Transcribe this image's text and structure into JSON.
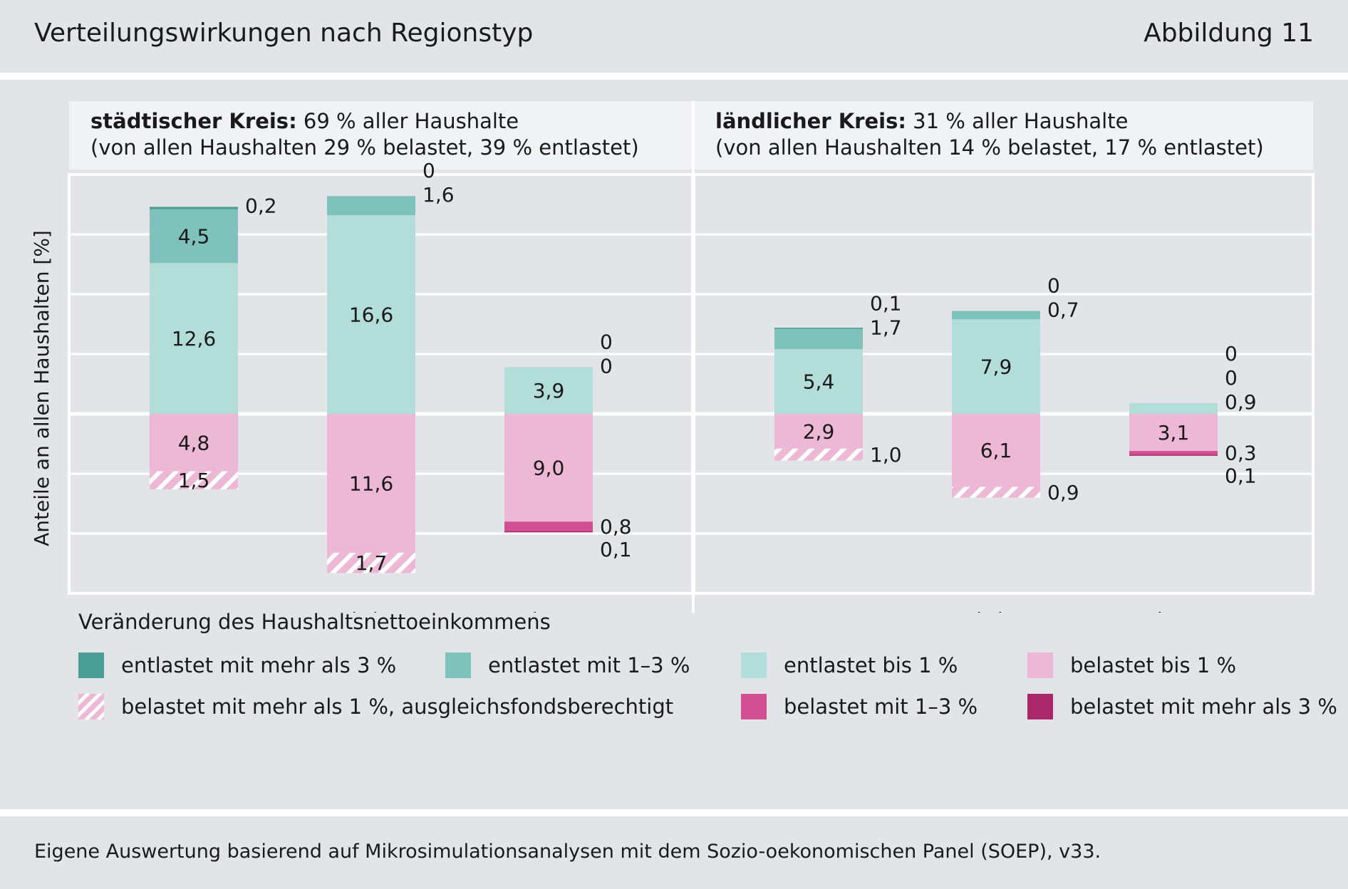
{
  "header": {
    "title": "Verteilungswirkungen nach Regionstyp",
    "figure_number": "Abbildung 11"
  },
  "footer": {
    "source": "Eigene Auswertung basierend auf Mikrosimulationsanalysen mit dem Sozio-oekonomischen Panel (SOEP), v33."
  },
  "legend": {
    "title": "Veränderung des Haushaltsnettoeinkommens",
    "items": [
      {
        "label": "entlastet mit mehr als 3 %",
        "color": "#4a9e95"
      },
      {
        "label": "entlastet mit 1–3 %",
        "color": "#7fc1bb"
      },
      {
        "label": "entlastet bis 1 %",
        "color": "#b2ddd9"
      },
      {
        "label": "belastet bis 1 %",
        "color": "#edb8d5"
      },
      {
        "label": "belastet mit mehr als 1 %, ausgleichsfondsberechtigt",
        "color": "#edb8d5",
        "pattern": "hatched"
      },
      {
        "label": "belastet mit 1–3 %",
        "color": "#d24f91"
      },
      {
        "label": "belastet mit mehr als 3 %",
        "color": "#a8286b"
      }
    ]
  },
  "chart_data": {
    "type": "bar",
    "stacked": true,
    "diverging": true,
    "ylabel": "Anteile an allen Haushalten [%]",
    "ylim": [
      -15,
      20
    ],
    "grid": true,
    "legend_position": "bottom",
    "categories": [
      "untere Einkommen",
      "mittlere Einkommen",
      "obere Einkommen"
    ],
    "category_lines": [
      [
        "untere",
        "Einkommen"
      ],
      [
        "mittlere",
        "Einkommen"
      ],
      [
        "obere",
        "Einkommen"
      ]
    ],
    "series_order": [
      "entlastet bis 1 %",
      "entlastet mit 1–3 %",
      "entlastet mit mehr als 3 %",
      "belastet bis 1 %",
      "belastet mit mehr als 1 %, ausgleichsfondsberechtigt",
      "belastet mit 1–3 %",
      "belastet mit mehr als 3 %"
    ],
    "panels": [
      {
        "title_bold": "städtischer Kreis:",
        "title_rest": " 69 % aller Haushalte",
        "subtitle": "(von allen Haushalten 29 % belastet, 39 % entlastet)",
        "bars": [
          {
            "category": "untere Einkommen",
            "entlastet": [
              {
                "value": 12.6,
                "label": "12,6"
              },
              {
                "value": 4.5,
                "label": "4,5"
              },
              {
                "value": 0.2,
                "label": "0,2"
              }
            ],
            "belastet": [
              {
                "value": 4.8,
                "label": "4,8"
              },
              {
                "value": 1.5,
                "label": "1,5"
              },
              {
                "value": 0,
                "label": ""
              },
              {
                "value": 0,
                "label": ""
              }
            ]
          },
          {
            "category": "mittlere Einkommen",
            "entlastet": [
              {
                "value": 16.6,
                "label": "16,6"
              },
              {
                "value": 1.6,
                "label": "1,6"
              },
              {
                "value": 0,
                "label": "0"
              }
            ],
            "belastet": [
              {
                "value": 11.6,
                "label": "11,6"
              },
              {
                "value": 1.7,
                "label": "1,7"
              },
              {
                "value": 0,
                "label": ""
              },
              {
                "value": 0,
                "label": ""
              }
            ]
          },
          {
            "category": "obere Einkommen",
            "entlastet": [
              {
                "value": 3.9,
                "label": "3,9"
              },
              {
                "value": 0,
                "label": "0"
              },
              {
                "value": 0,
                "label": "0"
              }
            ],
            "belastet": [
              {
                "value": 9.0,
                "label": "9,0"
              },
              {
                "value": 0,
                "label": ""
              },
              {
                "value": 0.8,
                "label": "0,8"
              },
              {
                "value": 0.1,
                "label": "0,1"
              }
            ]
          }
        ]
      },
      {
        "title_bold": "ländlicher Kreis:",
        "title_rest": " 31 % aller Haushalte",
        "subtitle": "(von allen Haushalten 14 % belastet, 17 % entlastet)",
        "bars": [
          {
            "category": "untere Einkommen",
            "entlastet": [
              {
                "value": 5.4,
                "label": "5,4"
              },
              {
                "value": 1.7,
                "label": "1,7"
              },
              {
                "value": 0.1,
                "label": "0,1"
              }
            ],
            "belastet": [
              {
                "value": 2.9,
                "label": "2,9"
              },
              {
                "value": 1.0,
                "label": "1,0"
              },
              {
                "value": 0,
                "label": ""
              },
              {
                "value": 0,
                "label": ""
              }
            ]
          },
          {
            "category": "mittlere Einkommen",
            "entlastet": [
              {
                "value": 7.9,
                "label": "7,9"
              },
              {
                "value": 0.7,
                "label": "0,7"
              },
              {
                "value": 0,
                "label": "0"
              }
            ],
            "belastet": [
              {
                "value": 6.1,
                "label": "6,1"
              },
              {
                "value": 0.9,
                "label": "0,9"
              },
              {
                "value": 0,
                "label": ""
              },
              {
                "value": 0,
                "label": ""
              }
            ]
          },
          {
            "category": "obere Einkommen",
            "entlastet": [
              {
                "value": 0.9,
                "label": "0,9"
              },
              {
                "value": 0,
                "label": "0"
              },
              {
                "value": 0,
                "label": "0"
              }
            ],
            "belastet": [
              {
                "value": 3.1,
                "label": "3,1"
              },
              {
                "value": 0,
                "label": ""
              },
              {
                "value": 0.3,
                "label": "0,3"
              },
              {
                "value": 0.1,
                "label": "0,1"
              }
            ]
          }
        ]
      }
    ]
  }
}
